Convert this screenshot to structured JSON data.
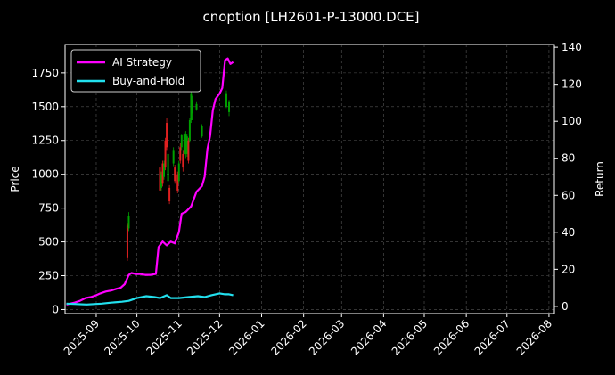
{
  "chart_data": {
    "type": "line",
    "title": "cnoption [LH2601-P-13000.DCE]",
    "xlabel": "",
    "ylabel": "Price",
    "ylabel_right": "Return",
    "x_tick_labels": [
      "2025-09",
      "2025-10",
      "2025-11",
      "2025-12",
      "2026-01",
      "2026-02",
      "2026-03",
      "2026-04",
      "2026-05",
      "2026-06",
      "2026-07",
      "2026-08"
    ],
    "y_ticks_left": [
      0,
      250,
      500,
      750,
      1000,
      1250,
      1500,
      1750
    ],
    "y_ticks_right": [
      0,
      20,
      40,
      60,
      80,
      100,
      120,
      140
    ],
    "xlim": [
      "2025-08-09",
      "2026-08-05"
    ],
    "ylim_left": [
      -30,
      1960
    ],
    "ylim_right": [
      -3.9,
      141.5
    ],
    "grid": true,
    "legend_position": "top-left",
    "colors": {
      "background": "#000000",
      "ai_strategy": "#ff00ff",
      "buy_and_hold": "#22e0ee",
      "candle_up": "#00a000",
      "candle_down": "#e02020",
      "grid": "#555555",
      "axis": "#ffffff"
    },
    "series": [
      {
        "name": "AI Strategy",
        "axis": "right",
        "points": [
          [
            "2025-08-10",
            1.0
          ],
          [
            "2025-08-16",
            2.0
          ],
          [
            "2025-08-20",
            3.0
          ],
          [
            "2025-08-24",
            4.5
          ],
          [
            "2025-08-28",
            5.0
          ],
          [
            "2025-09-01",
            6.0
          ],
          [
            "2025-09-04",
            7.0
          ],
          [
            "2025-09-08",
            8.0
          ],
          [
            "2025-09-12",
            8.5
          ],
          [
            "2025-09-16",
            9.5
          ],
          [
            "2025-09-19",
            10.0
          ],
          [
            "2025-09-22",
            12.0
          ],
          [
            "2025-09-25",
            17.0
          ],
          [
            "2025-09-27",
            18.0
          ],
          [
            "2025-09-30",
            17.5
          ],
          [
            "2025-10-03",
            17.5
          ],
          [
            "2025-10-07",
            17.0
          ],
          [
            "2025-10-11",
            17.0
          ],
          [
            "2025-10-15",
            17.5
          ],
          [
            "2025-10-17",
            32.0
          ],
          [
            "2025-10-20",
            35.0
          ],
          [
            "2025-10-23",
            33.0
          ],
          [
            "2025-10-26",
            35.0
          ],
          [
            "2025-10-29",
            34.0
          ],
          [
            "2025-11-01",
            40.0
          ],
          [
            "2025-11-03",
            50.0
          ],
          [
            "2025-11-06",
            51.0
          ],
          [
            "2025-11-10",
            54.0
          ],
          [
            "2025-11-14",
            62.0
          ],
          [
            "2025-11-18",
            65.0
          ],
          [
            "2025-11-20",
            70.0
          ],
          [
            "2025-11-22",
            85.0
          ],
          [
            "2025-11-24",
            92.0
          ],
          [
            "2025-11-26",
            106.0
          ],
          [
            "2025-11-28",
            112.0
          ],
          [
            "2025-12-01",
            115.0
          ],
          [
            "2025-12-03",
            118.0
          ],
          [
            "2025-12-05",
            133.0
          ],
          [
            "2025-12-07",
            134.0
          ],
          [
            "2025-12-09",
            131.0
          ],
          [
            "2025-12-11",
            132.0
          ]
        ]
      },
      {
        "name": "Buy-and-Hold",
        "axis": "right",
        "points": [
          [
            "2025-08-10",
            1.5
          ],
          [
            "2025-08-25",
            1.0
          ],
          [
            "2025-09-05",
            1.5
          ],
          [
            "2025-09-12",
            2.0
          ],
          [
            "2025-09-20",
            2.5
          ],
          [
            "2025-09-25",
            3.0
          ],
          [
            "2025-10-01",
            4.5
          ],
          [
            "2025-10-08",
            5.5
          ],
          [
            "2025-10-14",
            5.0
          ],
          [
            "2025-10-18",
            4.5
          ],
          [
            "2025-10-23",
            6.0
          ],
          [
            "2025-10-26",
            4.5
          ],
          [
            "2025-11-01",
            4.5
          ],
          [
            "2025-11-08",
            5.0
          ],
          [
            "2025-11-15",
            5.5
          ],
          [
            "2025-11-20",
            5.0
          ],
          [
            "2025-11-25",
            6.0
          ],
          [
            "2025-12-01",
            7.0
          ],
          [
            "2025-12-05",
            6.5
          ],
          [
            "2025-12-08",
            6.5
          ],
          [
            "2025-12-11",
            6.0
          ]
        ]
      }
    ],
    "candles": {
      "axis": "left",
      "items": [
        [
          "2025-09-24",
          380,
          620,
          360,
          640,
          "down"
        ],
        [
          "2025-09-25",
          600,
          690,
          580,
          720,
          "up"
        ],
        [
          "2025-10-18",
          880,
          1050,
          860,
          1080,
          "down"
        ],
        [
          "2025-10-19",
          1000,
          900,
          880,
          1020,
          "up"
        ],
        [
          "2025-10-20",
          930,
          1080,
          910,
          1100,
          "down"
        ],
        [
          "2025-10-21",
          1080,
          980,
          960,
          1100,
          "up"
        ],
        [
          "2025-10-22",
          1050,
          1250,
          1030,
          1270,
          "down"
        ],
        [
          "2025-10-23",
          1200,
          1380,
          1180,
          1420,
          "down"
        ],
        [
          "2025-10-24",
          1150,
          950,
          900,
          1180,
          "up"
        ],
        [
          "2025-10-25",
          900,
          800,
          780,
          920,
          "down"
        ],
        [
          "2025-10-28",
          1080,
          1180,
          1060,
          1200,
          "up"
        ],
        [
          "2025-10-29",
          950,
          1050,
          930,
          1070,
          "down"
        ],
        [
          "2025-10-31",
          880,
          1000,
          860,
          1020,
          "down"
        ],
        [
          "2025-11-01",
          950,
          1080,
          930,
          1100,
          "up"
        ],
        [
          "2025-11-02",
          1100,
          1200,
          1080,
          1230,
          "down"
        ],
        [
          "2025-11-03",
          1200,
          1290,
          1180,
          1300,
          "up"
        ],
        [
          "2025-11-04",
          1050,
          1150,
          1020,
          1180,
          "down"
        ],
        [
          "2025-11-05",
          1150,
          1300,
          1140,
          1310,
          "up"
        ],
        [
          "2025-11-06",
          1300,
          1150,
          1120,
          1320,
          "up"
        ],
        [
          "2025-11-07",
          1280,
          1150,
          1130,
          1300,
          "up"
        ],
        [
          "2025-11-08",
          1100,
          1250,
          1080,
          1270,
          "down"
        ],
        [
          "2025-11-09",
          1250,
          1400,
          1240,
          1420,
          "up"
        ],
        [
          "2025-11-10",
          1400,
          1600,
          1380,
          1650,
          "up"
        ],
        [
          "2025-11-11",
          1450,
          1550,
          1400,
          1580,
          "up"
        ],
        [
          "2025-11-14",
          1480,
          1520,
          1470,
          1540,
          "up"
        ],
        [
          "2025-11-18",
          1280,
          1360,
          1270,
          1370,
          "up"
        ],
        [
          "2025-12-06",
          1500,
          1600,
          1490,
          1620,
          "up"
        ],
        [
          "2025-12-08",
          1460,
          1540,
          1430,
          1550,
          "up"
        ]
      ]
    }
  }
}
